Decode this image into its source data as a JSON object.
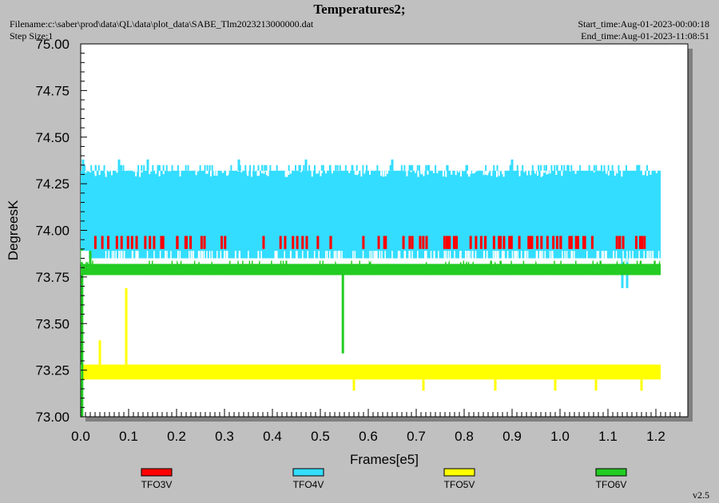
{
  "header": {
    "title": "Temperatures2;",
    "filename": "Filename:c:\\saber\\prod\\data\\QL\\data\\plot_data\\SABE_Tlm2023213000000.dat",
    "step_size": "Step Size:1",
    "start_time": "Start_time:Aug-01-2023-00:00:18",
    "end_time": "End_time:Aug-01-2023-11:08:51"
  },
  "version": "v2.5",
  "chart_data": {
    "type": "line",
    "xlabel": "Frames[e5]",
    "ylabel": "DegreesK",
    "xlim": [
      0.0,
      1.2
    ],
    "ylim": [
      73.0,
      75.0
    ],
    "x_ticks": [
      "0.0",
      "0.1",
      "0.2",
      "0.3",
      "0.4",
      "0.5",
      "0.6",
      "0.7",
      "0.8",
      "0.9",
      "1.0",
      "1.1",
      "1.2"
    ],
    "y_ticks": [
      "73.00",
      "73.25",
      "73.50",
      "73.75",
      "74.00",
      "74.25",
      "74.50",
      "74.75",
      "75.00"
    ],
    "x_data_end": 1.21,
    "grid": false,
    "legend_placement": "bottom",
    "series": [
      {
        "name": "TFO3V",
        "color": "#ff0000",
        "band": [
          73.9,
          73.97
        ],
        "spikes": [
          [
            0.21,
            74.03
          ],
          [
            0.215,
            74.03
          ],
          [
            0.28,
            74.01
          ],
          [
            1.14,
            73.86
          ]
        ]
      },
      {
        "name": "TFO4V",
        "color": "#33ddff",
        "band": [
          73.85,
          74.32
        ],
        "spikes": [
          [
            0.005,
            74.38
          ],
          [
            0.08,
            74.38
          ],
          [
            0.14,
            74.38
          ],
          [
            0.33,
            74.38
          ],
          [
            0.47,
            74.38
          ],
          [
            0.65,
            74.38
          ],
          [
            0.9,
            74.38
          ],
          [
            1.13,
            73.69
          ],
          [
            1.14,
            73.69
          ]
        ]
      },
      {
        "name": "TFO5V",
        "color": "#ffff00",
        "band": [
          73.2,
          73.28
        ],
        "spikes": [
          [
            0.04,
            73.41
          ],
          [
            0.095,
            73.69
          ],
          [
            0.57,
            73.14
          ],
          [
            0.715,
            73.14
          ],
          [
            0.865,
            73.14
          ],
          [
            0.99,
            73.14
          ],
          [
            1.075,
            73.14
          ],
          [
            1.17,
            73.14
          ]
        ]
      },
      {
        "name": "TFO6V",
        "color": "#22cc22",
        "band": [
          73.76,
          73.82
        ],
        "spikes": [
          [
            0.002,
            73.9
          ],
          [
            0.003,
            73.0
          ],
          [
            0.02,
            73.89
          ],
          [
            0.35,
            73.76
          ],
          [
            0.547,
            73.34
          ]
        ]
      }
    ]
  }
}
